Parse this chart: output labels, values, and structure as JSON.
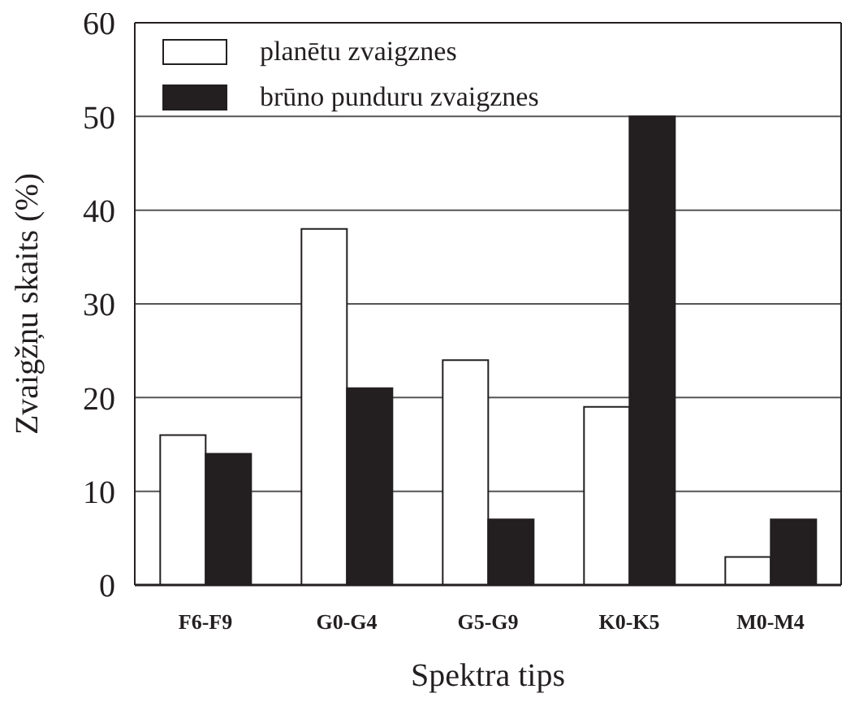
{
  "chart_data": {
    "type": "bar",
    "xlabel": "Spektra tips",
    "ylabel": "Zvaigžņu skaits (%)",
    "categories": [
      "F6-F9",
      "G0-G4",
      "G5-G9",
      "K0-K5",
      "M0-M4"
    ],
    "series": [
      {
        "name": "planētu zvaigznes",
        "color": "#ffffff",
        "values": [
          16,
          38,
          24,
          19,
          3
        ]
      },
      {
        "name": "brūno punduru zvaigznes",
        "color": "#231f20",
        "values": [
          14,
          21,
          7,
          50,
          7
        ]
      }
    ],
    "ylim": [
      0,
      60
    ],
    "yticks": [
      0,
      10,
      20,
      30,
      40,
      50,
      60
    ],
    "grid": "y",
    "legend": "top left"
  }
}
